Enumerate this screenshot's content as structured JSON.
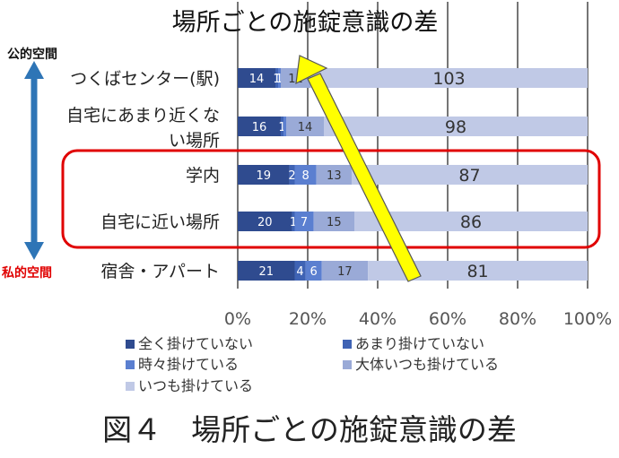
{
  "chart_data": {
    "type": "bar",
    "stacked": "percent",
    "orientation": "horizontal",
    "title": "場所ごとの施錠意識の差",
    "categories": [
      "つくばセンター(駅)",
      "自宅にあまり近くない場所",
      "学内",
      "自宅に近い場所",
      "宿舎・アパート"
    ],
    "category_display": [
      [
        "つくばセンター(駅)"
      ],
      [
        "自宅にあまり近くな",
        "い場所"
      ],
      [
        "学内"
      ],
      [
        "自宅に近い場所"
      ],
      [
        "宿舎・アパート"
      ]
    ],
    "series": [
      {
        "name": "全く掛けていない",
        "color": "#2f4b8f",
        "values": [
          14,
          16,
          19,
          20,
          21
        ]
      },
      {
        "name": "あまり掛けていない",
        "color": "#3f63b4",
        "values": [
          1,
          1,
          2,
          1,
          4
        ]
      },
      {
        "name": "時々掛けている",
        "color": "#5b7fd0",
        "values": [
          1,
          1,
          8,
          7,
          6
        ]
      },
      {
        "name": "大体いつも掛けている",
        "color": "#9aaad7",
        "values": [
          11,
          14,
          13,
          15,
          17
        ]
      },
      {
        "name": "いつも掛けている",
        "color": "#c0c9e6",
        "values": [
          103,
          98,
          87,
          86,
          81
        ]
      }
    ],
    "data_labels": [
      [
        "14",
        "1",
        "1",
        "11",
        "103"
      ],
      [
        "16",
        "1",
        "",
        "14",
        "98"
      ],
      [
        "19",
        "2",
        "8",
        "13",
        "87"
      ],
      [
        "20",
        "1",
        "7",
        "15",
        "86"
      ],
      [
        "21",
        "4",
        "6",
        "17",
        "81"
      ]
    ],
    "x_ticks": [
      "0%",
      "20%",
      "40%",
      "60%",
      "80%",
      "100%"
    ],
    "xlim": [
      0,
      100
    ],
    "grid": "vertical",
    "legend_position": "bottom",
    "annotations": {
      "public_label": "公的空間",
      "private_label": "私的空間",
      "highlight_box": "学内 and 自宅に近い場所 (red rounded rectangle)",
      "trend_arrow": "yellow arrow pointing toward upper-left"
    }
  },
  "caption": "図４　場所ごとの施錠意識の差"
}
